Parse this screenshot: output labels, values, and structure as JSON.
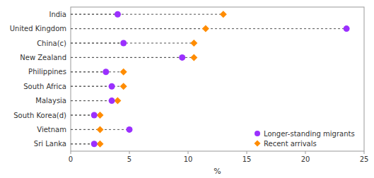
{
  "chart_data": {
    "type": "dot",
    "orientation": "horizontal",
    "categories": [
      "India",
      "United Kingdom",
      "China(c)",
      "New Zealand",
      "Philippines",
      "South Africa",
      "Malaysia",
      "South Korea(d)",
      "Vietnam",
      "Sri Lanka"
    ],
    "series": [
      {
        "name": "Longer-standing migrants",
        "color": "#9B30FF",
        "marker": "circle",
        "values": [
          4.0,
          23.5,
          4.5,
          9.5,
          3.0,
          3.5,
          3.5,
          2.0,
          5.0,
          2.0
        ]
      },
      {
        "name": "Recent arrivals",
        "color": "#FF8C00",
        "marker": "diamond",
        "values": [
          13.0,
          11.5,
          10.5,
          10.5,
          4.5,
          4.5,
          4.0,
          2.5,
          2.5,
          2.5
        ]
      }
    ],
    "color": "#555555",
    "line_style": "dashed",
    "x_label": "%",
    "xlim": [
      0,
      25
    ],
    "xticks": [
      0,
      5,
      10,
      15,
      20,
      25
    ],
    "grid": false,
    "legend": "lower-right"
  }
}
